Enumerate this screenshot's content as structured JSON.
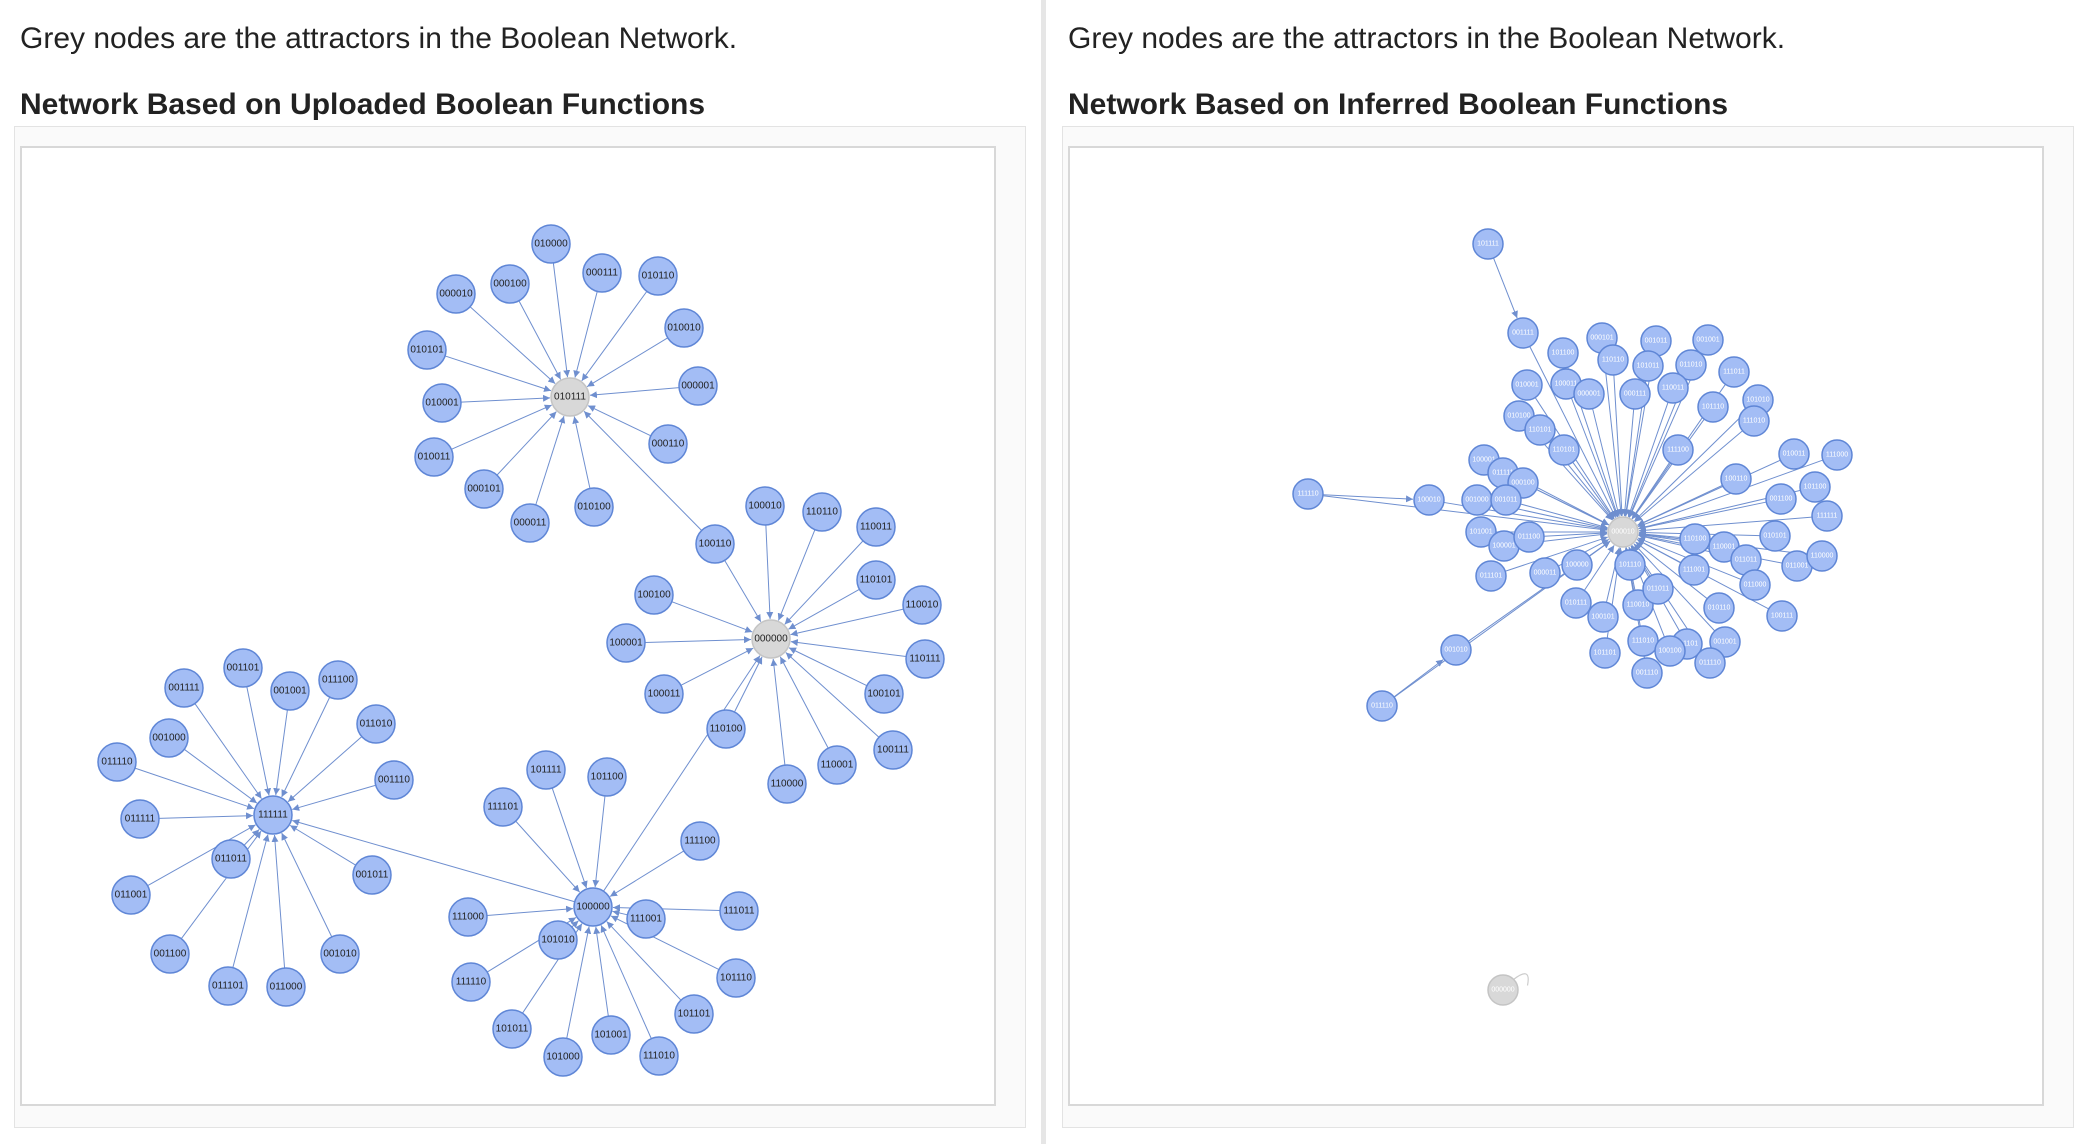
{
  "colors": {
    "node_fill": "#a3bdf5",
    "node_stroke": "#5f86d6",
    "attractor_fill": "#d8d8d8",
    "attractor_stroke": "#c4c4c4",
    "edge": "#6f8fcf"
  },
  "left_panel": {
    "caption": "Grey nodes are the attractors in the Boolean Network.",
    "heading": "Network Based on Uploaded Boolean Functions"
  },
  "right_panel": {
    "caption": "Grey nodes are the attractors in the Boolean Network.",
    "heading": "Network Based on Inferred Boolean Functions"
  },
  "left_graph": {
    "attractors": [
      "010111",
      "000000"
    ],
    "nodes": [
      "010000",
      "000100",
      "000111",
      "010110",
      "000010",
      "010010",
      "010101",
      "000001",
      "010001",
      "000110",
      "010011",
      "000101",
      "000011",
      "010100",
      "010111",
      "100010",
      "110110",
      "110011",
      "100110",
      "110101",
      "100100",
      "110010",
      "100001",
      "000000",
      "110111",
      "100011",
      "100101",
      "110100",
      "110001",
      "110000",
      "100111",
      "001101",
      "011100",
      "001111",
      "001001",
      "011010",
      "001000",
      "001110",
      "011110",
      "111111",
      "011111",
      "011011",
      "001011",
      "011001",
      "001010",
      "001100",
      "011101",
      "011000",
      "101111",
      "101100",
      "111101",
      "111100",
      "100000",
      "111000",
      "111001",
      "101010",
      "111011",
      "111110",
      "101110",
      "101101",
      "101011",
      "101001",
      "111010",
      "101000"
    ]
  },
  "right_graph": {
    "attractors": [
      "000010",
      "000000"
    ],
    "nodes": [
      "101111",
      "001111",
      "101100",
      "000101",
      "001011",
      "110110",
      "101011",
      "011010",
      "001001",
      "010001",
      "100011",
      "000111",
      "110011",
      "111011",
      "101110",
      "010100",
      "110101",
      "000001",
      "111100",
      "101010",
      "100001",
      "011111",
      "110101",
      "000100",
      "111010",
      "100010",
      "010011",
      "001000",
      "001011",
      "111110",
      "000010",
      "111000",
      "001100",
      "100110",
      "101001",
      "100001",
      "011100",
      "101100",
      "111111",
      "011101",
      "000011",
      "100000",
      "010111",
      "101110",
      "110010",
      "011011",
      "111001",
      "110100",
      "110001",
      "011011",
      "011000",
      "010110",
      "001010",
      "111010",
      "100101",
      "101101",
      "001110",
      "011101",
      "001001",
      "011110",
      "100111",
      "010101",
      "011001",
      "110000",
      "100100",
      "011110",
      "000000"
    ]
  }
}
